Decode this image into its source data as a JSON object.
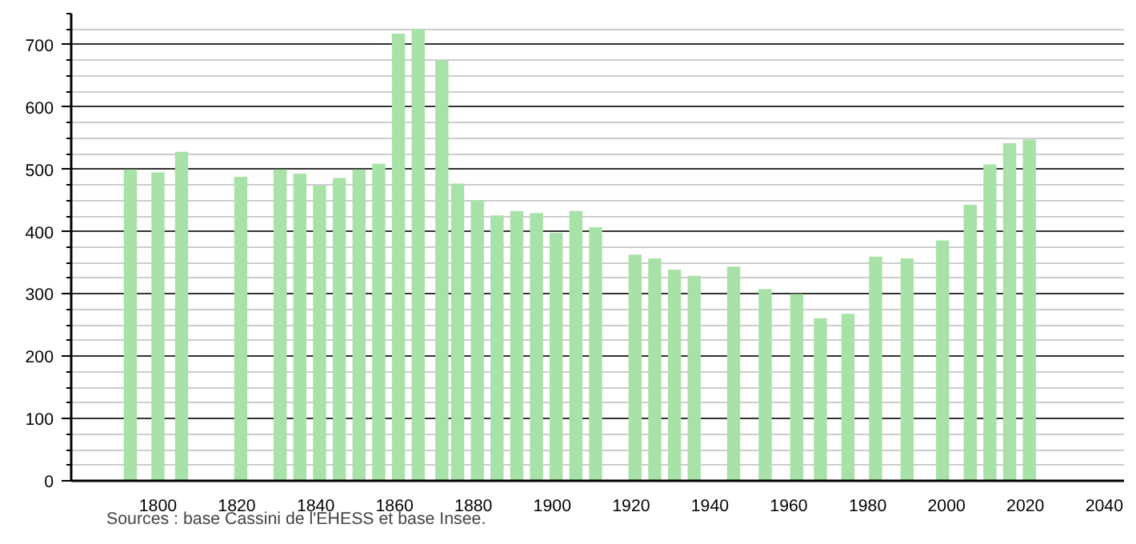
{
  "chart_data": {
    "type": "bar",
    "color": "#a8e2a8",
    "x": [
      1793,
      1800,
      1806,
      1821,
      1831,
      1836,
      1841,
      1846,
      1851,
      1856,
      1861,
      1866,
      1872,
      1876,
      1881,
      1886,
      1891,
      1896,
      1901,
      1906,
      1911,
      1921,
      1926,
      1931,
      1936,
      1946,
      1954,
      1962,
      1968,
      1975,
      1982,
      1990,
      1999,
      2006,
      2011,
      2016,
      2021
    ],
    "values": [
      500,
      495,
      528,
      488,
      500,
      493,
      474,
      486,
      500,
      509,
      718,
      725,
      675,
      477,
      450,
      426,
      433,
      430,
      398,
      433,
      407,
      363,
      357,
      339,
      329,
      344,
      308,
      300,
      261,
      268,
      360,
      357,
      386,
      443,
      508,
      542,
      548
    ],
    "xlim": [
      1778,
      2045
    ],
    "ylim": [
      0,
      750
    ],
    "xticks": [
      1800,
      1820,
      1840,
      1860,
      1880,
      1900,
      1920,
      1940,
      1960,
      1980,
      2000,
      2020,
      2040
    ],
    "yticks": [
      0,
      100,
      200,
      300,
      400,
      500,
      600,
      700
    ],
    "grid": "y",
    "annotations": [
      "Sources : base Cassini de l'EHESS et base Insee."
    ]
  }
}
